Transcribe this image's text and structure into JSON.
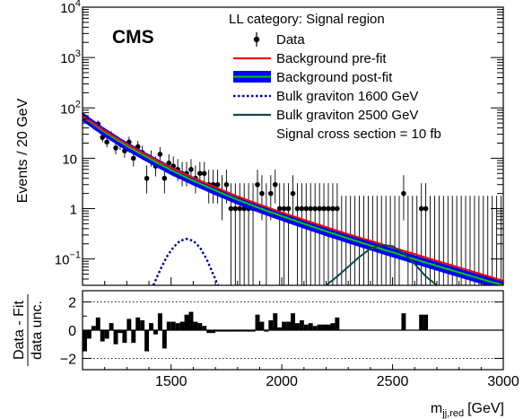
{
  "chart_data": [
    {
      "type": "scatter",
      "panel": "main",
      "logo": "CMS",
      "title": "LL category: Signal region",
      "ylabel": "Events / 20 GeV",
      "xlim": [
        1100,
        3000
      ],
      "ylim": [
        0.03,
        10000
      ],
      "yscale": "log",
      "y_ticks": [
        {
          "value": 0.1,
          "base": "10",
          "exp": "−1"
        },
        {
          "value": 1,
          "base": "1",
          "exp": ""
        },
        {
          "value": 10,
          "base": "10",
          "exp": ""
        },
        {
          "value": 100,
          "base": "10",
          "exp": "2"
        },
        {
          "value": 1000,
          "base": "10",
          "exp": "3"
        },
        {
          "value": 10000,
          "base": "10",
          "exp": "4"
        }
      ],
      "legend": {
        "placement": "top-right",
        "entries": [
          {
            "label": "Data",
            "style": "point"
          },
          {
            "label": "Background pre-fit",
            "style": "line",
            "color": "#ff0000"
          },
          {
            "label": "Background post-fit",
            "style": "band",
            "color": "#0000ff",
            "line_color": "#00cc00"
          },
          {
            "label": "Bulk graviton 1600 GeV",
            "style": "dotted",
            "color": "#000099"
          },
          {
            "label": "Bulk graviton 2500 GeV",
            "style": "line",
            "color": "#0b4a4a"
          },
          {
            "label": "Signal cross section = 10 fb",
            "style": "none"
          }
        ]
      },
      "series": [
        {
          "name": "Data",
          "x": [
            1110,
            1130,
            1150,
            1170,
            1190,
            1210,
            1230,
            1250,
            1270,
            1290,
            1310,
            1330,
            1350,
            1370,
            1390,
            1410,
            1430,
            1450,
            1470,
            1490,
            1510,
            1530,
            1550,
            1570,
            1590,
            1610,
            1630,
            1650,
            1670,
            1690,
            1710,
            1730,
            1750,
            1770,
            1790,
            1810,
            1830,
            1850,
            1870,
            1890,
            1910,
            1930,
            1950,
            1970,
            1990,
            2010,
            2030,
            2050,
            2070,
            2090,
            2110,
            2130,
            2150,
            2170,
            2190,
            2210,
            2230,
            2250,
            2550,
            2630,
            2650
          ],
          "y": [
            66,
            55,
            44,
            48,
            26,
            21,
            28,
            16,
            19,
            14,
            21,
            10,
            17,
            13,
            4,
            10,
            7,
            12,
            4,
            8,
            7,
            6,
            5,
            5,
            6,
            4,
            5,
            5,
            3,
            3,
            3,
            2,
            3,
            1,
            1,
            1,
            1,
            1,
            1,
            3,
            2,
            1,
            2,
            3,
            1,
            1,
            1,
            2,
            1,
            1,
            1,
            1,
            1,
            1,
            1,
            1,
            1,
            1,
            2,
            1,
            1
          ]
        },
        {
          "name": "Background pre-fit",
          "x": [
            1100,
            1200,
            1300,
            1400,
            1500,
            1600,
            1700,
            1800,
            1900,
            2000,
            2100,
            2200,
            2300,
            2400,
            2500,
            2600,
            2700,
            2800,
            2900,
            3000
          ],
          "y": [
            70,
            35,
            19,
            11,
            6.5,
            4.1,
            2.65,
            1.75,
            1.2,
            0.84,
            0.6,
            0.43,
            0.31,
            0.23,
            0.17,
            0.125,
            0.092,
            0.068,
            0.05,
            0.037
          ]
        },
        {
          "name": "Background post-fit",
          "x": [
            1100,
            1200,
            1300,
            1400,
            1500,
            1600,
            1700,
            1800,
            1900,
            2000,
            2100,
            2200,
            2300,
            2400,
            2500,
            2600,
            2700,
            2800,
            2900,
            3000
          ],
          "y": [
            68,
            33,
            17.5,
            10,
            5.8,
            3.6,
            2.3,
            1.5,
            1.02,
            0.71,
            0.5,
            0.355,
            0.255,
            0.185,
            0.135,
            0.099,
            0.073,
            0.054,
            0.04,
            0.03
          ],
          "band": 0.2
        },
        {
          "name": "Bulk graviton 1600 GeV",
          "x": [
            1420,
            1450,
            1480,
            1510,
            1540,
            1570,
            1600,
            1630,
            1660,
            1690,
            1720
          ],
          "y": [
            0.03,
            0.06,
            0.11,
            0.17,
            0.23,
            0.25,
            0.23,
            0.17,
            0.1,
            0.05,
            0.025
          ]
        },
        {
          "name": "Bulk graviton 2500 GeV",
          "x": [
            2200,
            2250,
            2300,
            2350,
            2400,
            2450,
            2500,
            2550,
            2600,
            2650,
            2700
          ],
          "y": [
            0.03,
            0.045,
            0.07,
            0.11,
            0.16,
            0.19,
            0.18,
            0.13,
            0.08,
            0.045,
            0.03
          ]
        }
      ]
    },
    {
      "type": "bar",
      "panel": "ratio",
      "ylabel_top": "Data - Fit",
      "ylabel_bottom": "data unc.",
      "xlabel_main": "m",
      "xlabel_sub": "jj,red",
      "xlabel_unit": "[GeV]",
      "xlim": [
        1100,
        3000
      ],
      "ylim": [
        -2.8,
        2.8
      ],
      "y_ticks": [
        -2,
        0,
        2
      ],
      "x_ticks": [
        1500,
        2000,
        2500,
        3000
      ],
      "reference_lines": [
        -2,
        2
      ],
      "x": [
        1110,
        1130,
        1150,
        1170,
        1190,
        1210,
        1230,
        1250,
        1270,
        1290,
        1310,
        1330,
        1350,
        1370,
        1390,
        1410,
        1430,
        1450,
        1470,
        1490,
        1510,
        1530,
        1550,
        1570,
        1590,
        1610,
        1630,
        1650,
        1670,
        1690,
        1710,
        1730,
        1750,
        1770,
        1790,
        1810,
        1830,
        1850,
        1870,
        1890,
        1910,
        1930,
        1950,
        1970,
        1990,
        2010,
        2030,
        2050,
        2070,
        2090,
        2110,
        2130,
        2150,
        2170,
        2190,
        2210,
        2230,
        2250,
        2550,
        2630,
        2650
      ],
      "values": [
        -1.5,
        -0.6,
        0.3,
        0.9,
        -0.8,
        -0.6,
        0.5,
        -1.0,
        -0.2,
        -0.9,
        0.8,
        -0.9,
        0.9,
        0.7,
        -1.5,
        0.5,
        -0.3,
        1.2,
        -1.3,
        0.6,
        0.6,
        0.5,
        0.6,
        1.1,
        1.3,
        0.6,
        0.5,
        0.3,
        -0.2,
        -0.2,
        -0.1,
        -0.1,
        -0.1,
        -0.1,
        -0.1,
        -0.1,
        -0.1,
        -0.1,
        -0.1,
        1.1,
        0.6,
        -0.1,
        0.7,
        1.2,
        0.2,
        0.6,
        0.6,
        1.2,
        0.5,
        0.7,
        0.4,
        0.5,
        0.3,
        0.4,
        0.4,
        0.4,
        0.5,
        0.9,
        1.2,
        1.1,
        1.1
      ]
    }
  ]
}
